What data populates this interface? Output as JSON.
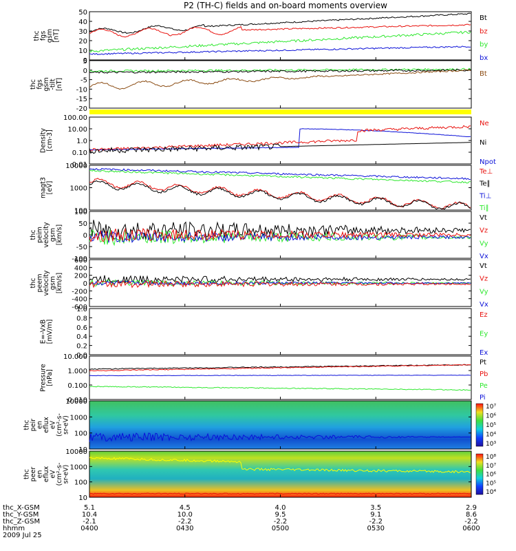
{
  "title": "P2 (TH-C) fields and on-board moments overview",
  "colors": {
    "black": "#000000",
    "red": "#e8100c",
    "green": "#2ee82e",
    "blue": "#0a10d8",
    "yellow": "#ffff00",
    "brown": "#8a4a10"
  },
  "panels": [
    {
      "id": "fgs-gsm",
      "ylabel": [
        "thc",
        "fgs",
        "gsm",
        "[nT]"
      ],
      "ticks": [
        "0",
        "10",
        "20",
        "30",
        "40",
        "50"
      ],
      "legend": [
        {
          "text": "Bt",
          "color": "black"
        },
        {
          "text": "bz",
          "color": "red"
        },
        {
          "text": "by",
          "color": "green"
        },
        {
          "text": "bx",
          "color": "blue"
        }
      ]
    },
    {
      "id": "fgs-gse",
      "ylabel": [
        "thc",
        "fgs",
        "gsm",
        "-tilt",
        "[nT]"
      ],
      "ticks": [
        "-20",
        "-15",
        "-10",
        "-5",
        "0",
        "5"
      ],
      "legend": [
        {
          "text": "Bt",
          "color": "brown"
        }
      ]
    },
    {
      "id": "density",
      "ylabel": [
        "Density",
        "[cm-3]"
      ],
      "ticks": [
        "0.01",
        "0.10",
        "1.0",
        "10.00",
        "100.00"
      ],
      "legend": [
        {
          "text": "Ne",
          "color": "red"
        },
        {
          "text": "Ni",
          "color": "black"
        },
        {
          "text": "Npot",
          "color": "blue"
        }
      ]
    },
    {
      "id": "temperature",
      "ylabel": [
        "magt3",
        "[eV]"
      ],
      "ticks": [
        "100",
        "1000",
        "10000"
      ],
      "legend": [
        {
          "text": "Te⊥",
          "color": "red"
        },
        {
          "text": "Te∥",
          "color": "black"
        },
        {
          "text": "Ti⊥",
          "color": "blue"
        },
        {
          "text": "Ti∥",
          "color": "green"
        }
      ]
    },
    {
      "id": "peim-velocity",
      "ylabel": [
        "thc",
        "peim",
        "velocity",
        "gsm",
        "[km/s]"
      ],
      "ticks": [
        "-100",
        "-50",
        "0",
        "50",
        "100"
      ],
      "legend": [
        {
          "text": "Vt",
          "color": "black"
        },
        {
          "text": "Vz",
          "color": "red"
        },
        {
          "text": "Vy",
          "color": "green"
        },
        {
          "text": "Vx",
          "color": "blue"
        }
      ]
    },
    {
      "id": "peem-velocity",
      "ylabel": [
        "thc",
        "peem",
        "velocity",
        "gsm",
        "[km/s]"
      ],
      "ticks": [
        "-600",
        "-400",
        "-200",
        "0",
        "200",
        "400",
        "600"
      ],
      "legend": [
        {
          "text": "Vt",
          "color": "black"
        },
        {
          "text": "Vz",
          "color": "red"
        },
        {
          "text": "Vy",
          "color": "green"
        },
        {
          "text": "Vx",
          "color": "blue"
        }
      ]
    },
    {
      "id": "efield",
      "ylabel": [
        "E=-VxB",
        "[mV/m]"
      ],
      "ticks": [
        "0.0",
        "0.2",
        "0.4",
        "0.6",
        "0.8",
        "1.0"
      ],
      "legend": [
        {
          "text": "Ez",
          "color": "red"
        },
        {
          "text": "Ey",
          "color": "green"
        },
        {
          "text": "Ex",
          "color": "blue"
        }
      ]
    },
    {
      "id": "pressure",
      "ylabel": [
        "Pressure",
        "[nPa]"
      ],
      "ticks": [
        "0.010",
        "0.100",
        "1.000",
        "10.000"
      ],
      "legend": [
        {
          "text": "Pt",
          "color": "black"
        },
        {
          "text": "Pb",
          "color": "red"
        },
        {
          "text": "Pe",
          "color": "green"
        },
        {
          "text": "Pi",
          "color": "blue"
        }
      ]
    },
    {
      "id": "peir-spec",
      "ylabel": [
        "thc",
        "peir",
        "en",
        "eflux",
        "eV",
        "(cm²-s-",
        "sr-eV)"
      ],
      "ticks": [
        "10",
        "100",
        "1000",
        "10000"
      ],
      "colorbar": [
        "10³",
        "10⁴",
        "10⁵",
        "10⁶",
        "10⁷"
      ]
    },
    {
      "id": "peer-spec",
      "ylabel": [
        "thc",
        "peer",
        "en",
        "eflux",
        "eV",
        "(cm²-s-",
        "sr-eV)"
      ],
      "ticks": [
        "10",
        "100",
        "1000",
        "10000"
      ],
      "colorbar": [
        "10⁴",
        "10⁵",
        "10⁶",
        "10⁷",
        "10⁸"
      ]
    }
  ],
  "footer": {
    "rows": [
      {
        "label": "thc_X-GSM",
        "values": [
          "5.1",
          "4.5",
          "4.0",
          "3.5",
          "2.9"
        ]
      },
      {
        "label": "thc_Y-GSM",
        "values": [
          "10.4",
          "10.0",
          "9.5",
          "9.1",
          "8.6"
        ]
      },
      {
        "label": "thc_Z-GSM",
        "values": [
          "-2.1",
          "-2.2",
          "-2.2",
          "-2.2",
          "-2.2"
        ]
      },
      {
        "label": "hhmm",
        "values": [
          "0400",
          "0430",
          "0500",
          "0530",
          "0600"
        ]
      }
    ],
    "date": "2009 Jul 25"
  },
  "chart_data": {
    "type": "line",
    "x_label": "hhmm",
    "x_ticks": [
      "0400",
      "0430",
      "0500",
      "0530",
      "0600"
    ],
    "series_samples": {
      "Bt": [
        30,
        29,
        31,
        33,
        36,
        39,
        42,
        45,
        47,
        49,
        50
      ],
      "bz": [
        30,
        27,
        28,
        29,
        30,
        31,
        32,
        34,
        35,
        37,
        38
      ],
      "by": [
        10,
        12,
        14,
        16,
        18,
        20,
        22,
        24,
        26,
        28,
        30
      ],
      "bx": [
        5,
        6,
        7,
        8,
        9,
        10,
        11,
        12,
        13,
        14,
        15
      ]
    }
  }
}
